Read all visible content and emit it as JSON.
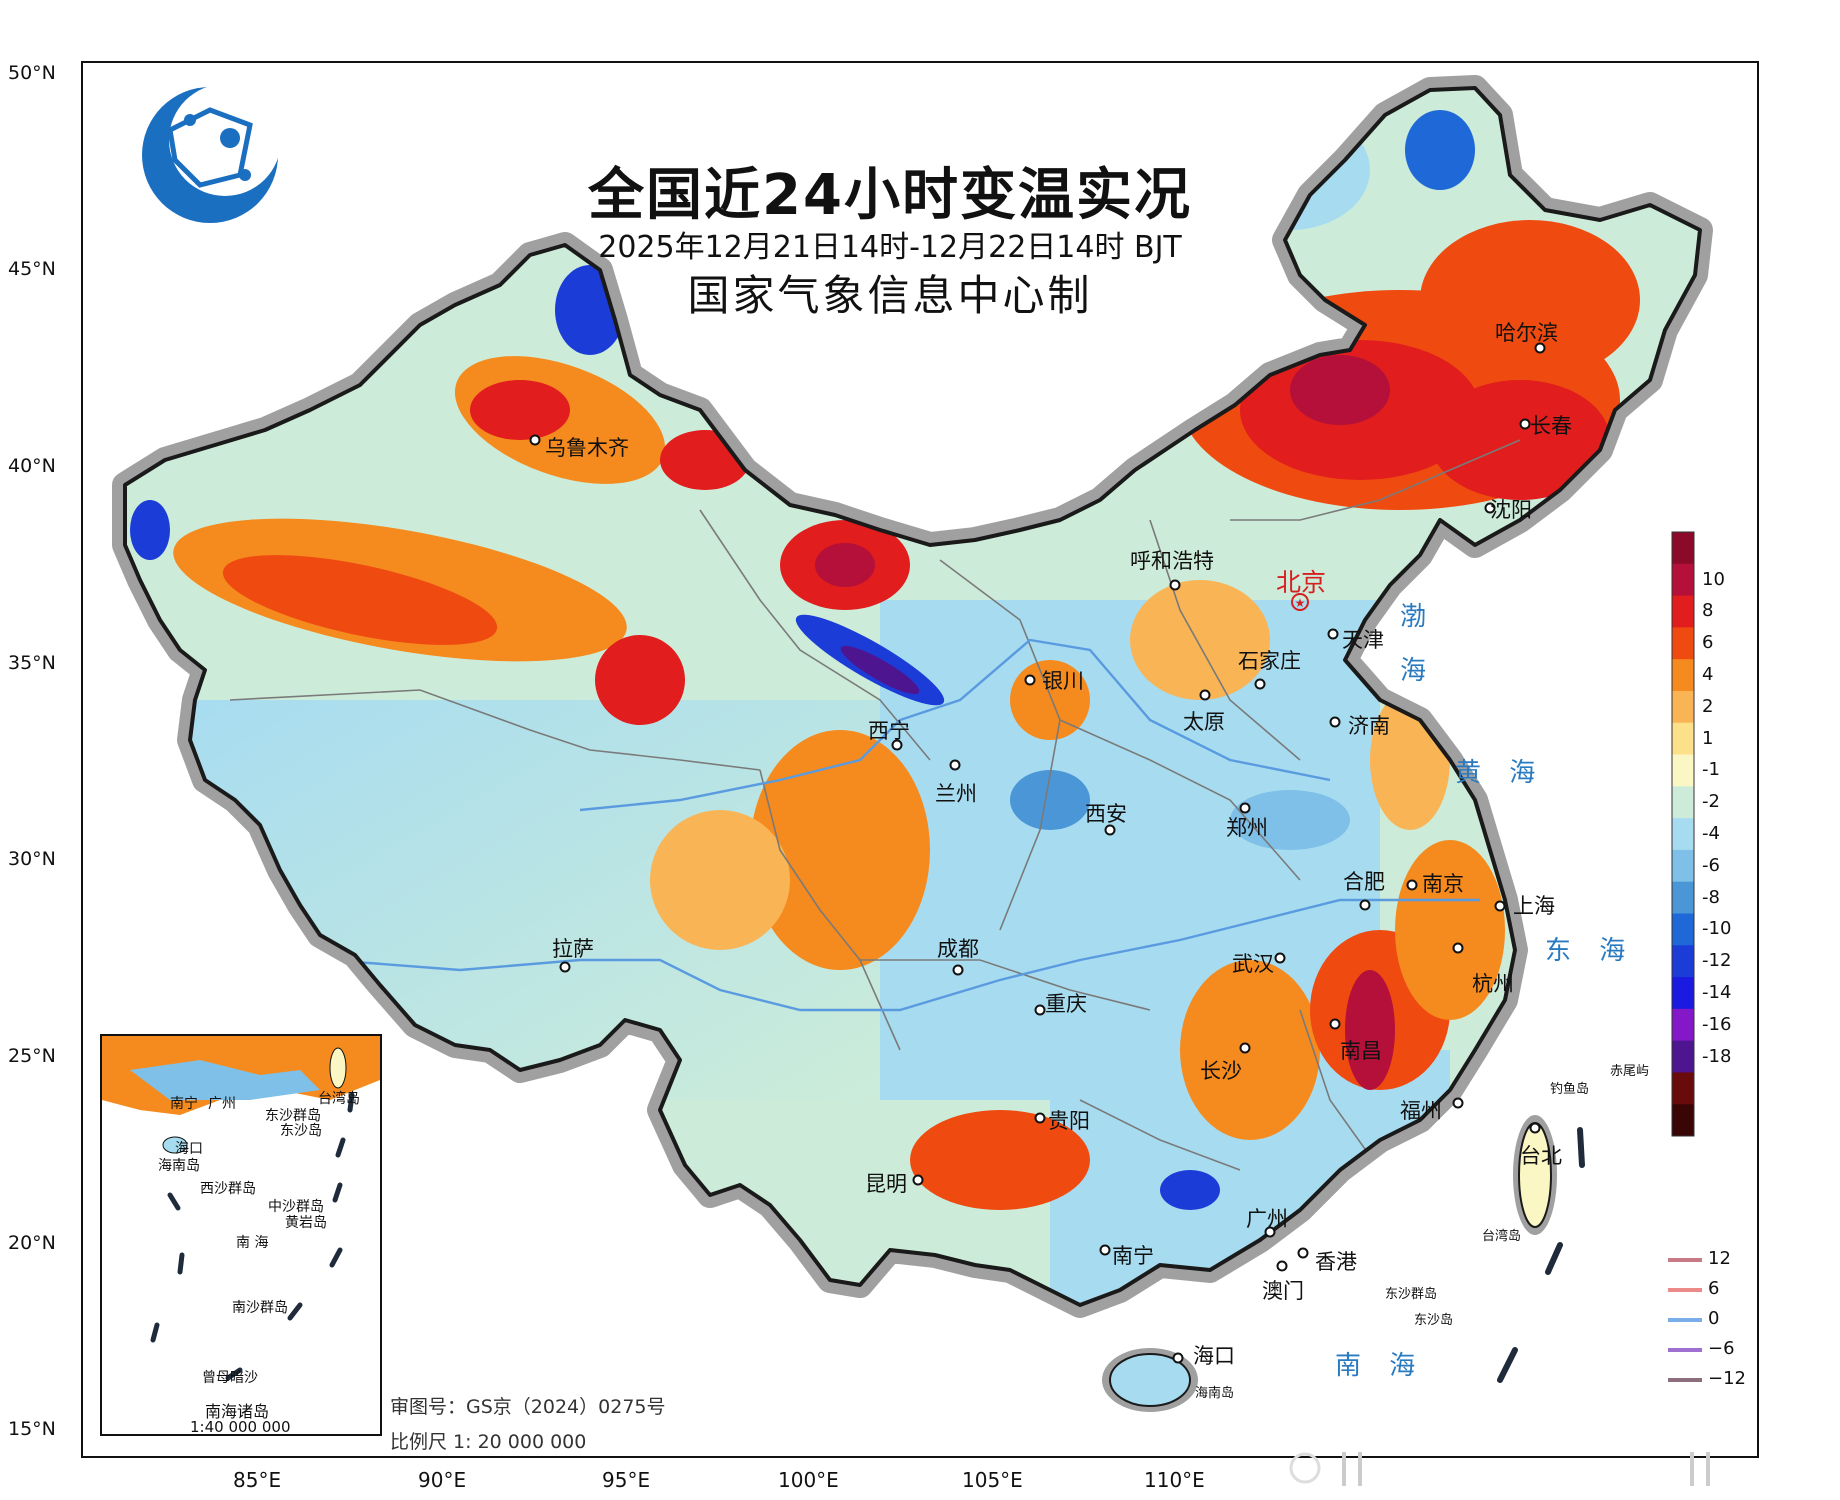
{
  "title": {
    "main": "全国近24小时变温实况",
    "date": "2025年12月21日14时-12月22日14时 BJT",
    "org": "国家气象信息中心制"
  },
  "axes": {
    "lat_labels": [
      "50°N",
      "45°N",
      "40°N",
      "35°N",
      "30°N",
      "25°N",
      "20°N",
      "15°N"
    ],
    "lon_labels": [
      "85°E",
      "90°E",
      "95°E",
      "100°E",
      "105°E",
      "110°E"
    ]
  },
  "colorbar": {
    "labels": [
      "10",
      "8",
      "6",
      "4",
      "2",
      "1",
      "-1",
      "-2",
      "-4",
      "-6",
      "-8",
      "-10",
      "-12",
      "-14",
      "-16",
      "-18"
    ],
    "colors": [
      "#8b0a2a",
      "#b5103a",
      "#e11d1d",
      "#ef4a10",
      "#f58a1e",
      "#f9b455",
      "#fde08a",
      "#fbf7c4",
      "#ccecd9",
      "#a7dcf0",
      "#7ec0e8",
      "#4b96d6",
      "#1e68d8",
      "#1c3cd8",
      "#1a1ae0",
      "#8418c8",
      "#4e1590",
      "#6a0b0b",
      "#3a0505"
    ]
  },
  "contour_legend": {
    "items": [
      {
        "label": "12",
        "color": "#c87a86"
      },
      {
        "label": "6",
        "color": "#ec8a8a"
      },
      {
        "label": "0",
        "color": "#7aaeea"
      },
      {
        "label": "−6",
        "color": "#a070d0"
      },
      {
        "label": "−12",
        "color": "#8d6e7c"
      }
    ]
  },
  "cities": {
    "beijing": "北京",
    "tianjin": "天津",
    "shijiazhuang": "石家庄",
    "taiyuan": "太原",
    "jinan": "济南",
    "huhehaote": "呼和浩特",
    "harbin": "哈尔滨",
    "changchun": "长春",
    "shenyang": "沈阳",
    "urumqi": "乌鲁木齐",
    "yinchuan": "银川",
    "xining": "西宁",
    "lanzhou": "兰州",
    "xian": "西安",
    "zhengzhou": "郑州",
    "hefei": "合肥",
    "nanjing": "南京",
    "shanghai": "上海",
    "hangzhou": "杭州",
    "wuhan": "武汉",
    "lasa": "拉萨",
    "chengdu": "成都",
    "chongqing": "重庆",
    "changsha": "长沙",
    "nanchang": "南昌",
    "fuzhou": "福州",
    "taibei": "台北",
    "guiyang": "贵阳",
    "kunming": "昆明",
    "guangzhou": "广州",
    "nanning": "南宁",
    "xianggang": "香港",
    "aomen": "澳门",
    "haikou": "海口"
  },
  "seas": {
    "bohai_1": "渤",
    "bohai_2": "海",
    "huanghai": "黄 海",
    "donghai": "东 海",
    "nanhai": "南 海"
  },
  "islands": {
    "hainan": "海南岛",
    "taiwan": "台湾岛",
    "dongsha": "东沙群岛",
    "dongshadao": "东沙岛",
    "diaoyu": "钓鱼岛",
    "chiwei": "赤尾屿"
  },
  "inset": {
    "title": "南海诸岛",
    "scale": "1:40 000 000",
    "labels": [
      "海口",
      "海南岛",
      "台湾岛",
      "东沙群岛",
      "东沙岛",
      "西沙群岛",
      "中沙群岛",
      "黄岩岛",
      "南 海",
      "南沙群岛",
      "曾母暗沙",
      "南宁",
      "广州"
    ]
  },
  "footer": {
    "approval": "审图号：GS京（2024）0275号",
    "scale": "比例尺 1: 20 000 000"
  },
  "colors": {
    "frame": "#111111",
    "border_glow": "#999999",
    "sea_text": "#2a7ac0",
    "capital": "#d62020"
  }
}
